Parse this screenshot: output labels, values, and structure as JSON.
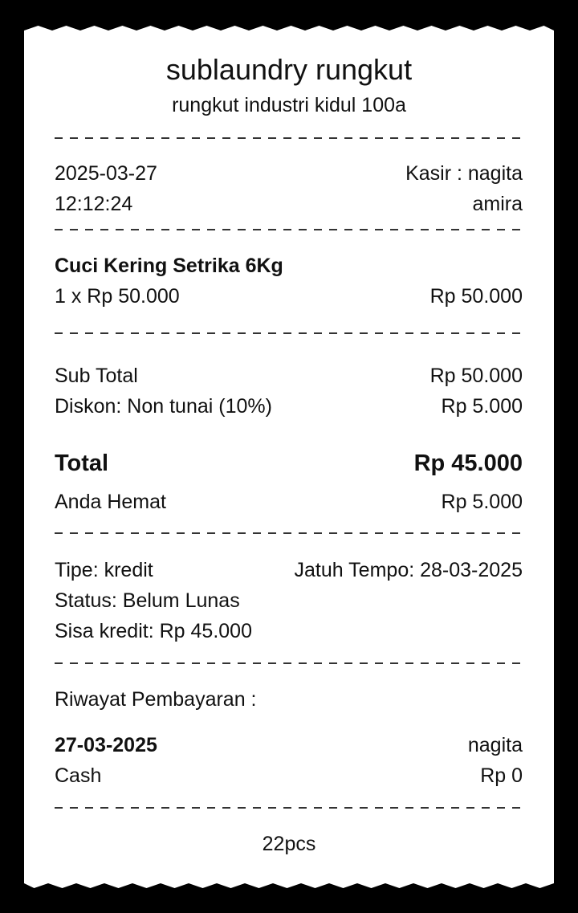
{
  "store": {
    "name": "sublaundry rungkut",
    "address": "rungkut industri kidul 100a"
  },
  "meta": {
    "date": "2025-03-27",
    "time": "12:12:24",
    "cashier_label": "Kasir : nagita",
    "cashier_name_cont": "amira"
  },
  "item": {
    "name": "Cuci Kering Setrika 6Kg",
    "qty_price": "1 x Rp 50.000",
    "amount": "Rp 50.000"
  },
  "summary": {
    "subtotal_label": "Sub Total",
    "subtotal": "Rp 50.000",
    "discount_label": "Diskon: Non tunai (10%)",
    "discount": "Rp 5.000",
    "total_label": "Total",
    "total": "Rp 45.000",
    "savings_label": "Anda Hemat",
    "savings": "Rp 5.000"
  },
  "payment": {
    "type": "Tipe: kredit",
    "due": "Jatuh Tempo: 28-03-2025",
    "status": "Status: Belum Lunas",
    "remaining": "Sisa kredit: Rp 45.000"
  },
  "history": {
    "title": "Riwayat Pembayaran :",
    "date": "27-03-2025",
    "user": "nagita",
    "method": "Cash",
    "amount": "Rp 0"
  },
  "footer": {
    "note": "22pcs"
  },
  "colors": {
    "background": "#000000",
    "paper": "#ffffff",
    "text": "#111111"
  }
}
